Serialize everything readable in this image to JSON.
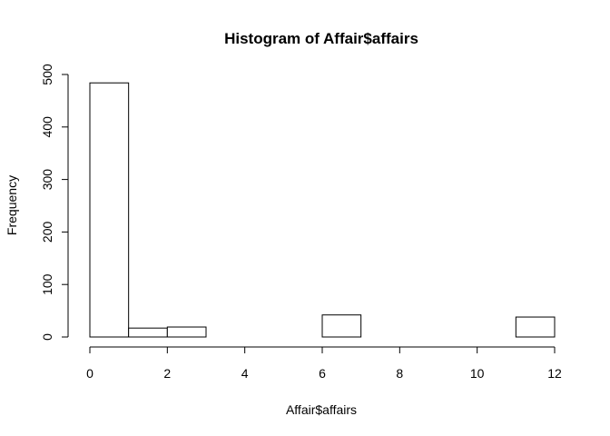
{
  "chart_data": {
    "type": "bar",
    "title": "Histogram of Affair$affairs",
    "xlabel": "Affair$affairs",
    "ylabel": "Frequency",
    "bin_edges": [
      0,
      1,
      2,
      3,
      4,
      5,
      6,
      7,
      8,
      9,
      10,
      11,
      12
    ],
    "values": [
      484,
      17,
      19,
      0,
      0,
      0,
      42,
      0,
      0,
      0,
      0,
      38
    ],
    "xlim": [
      0,
      12
    ],
    "ylim": [
      0,
      500
    ],
    "x_ticks": [
      0,
      2,
      4,
      6,
      8,
      10,
      12
    ],
    "y_ticks": [
      0,
      100,
      200,
      300,
      400,
      500
    ],
    "grid": false,
    "bar_fill": "#ffffff",
    "bar_stroke": "#000000"
  }
}
